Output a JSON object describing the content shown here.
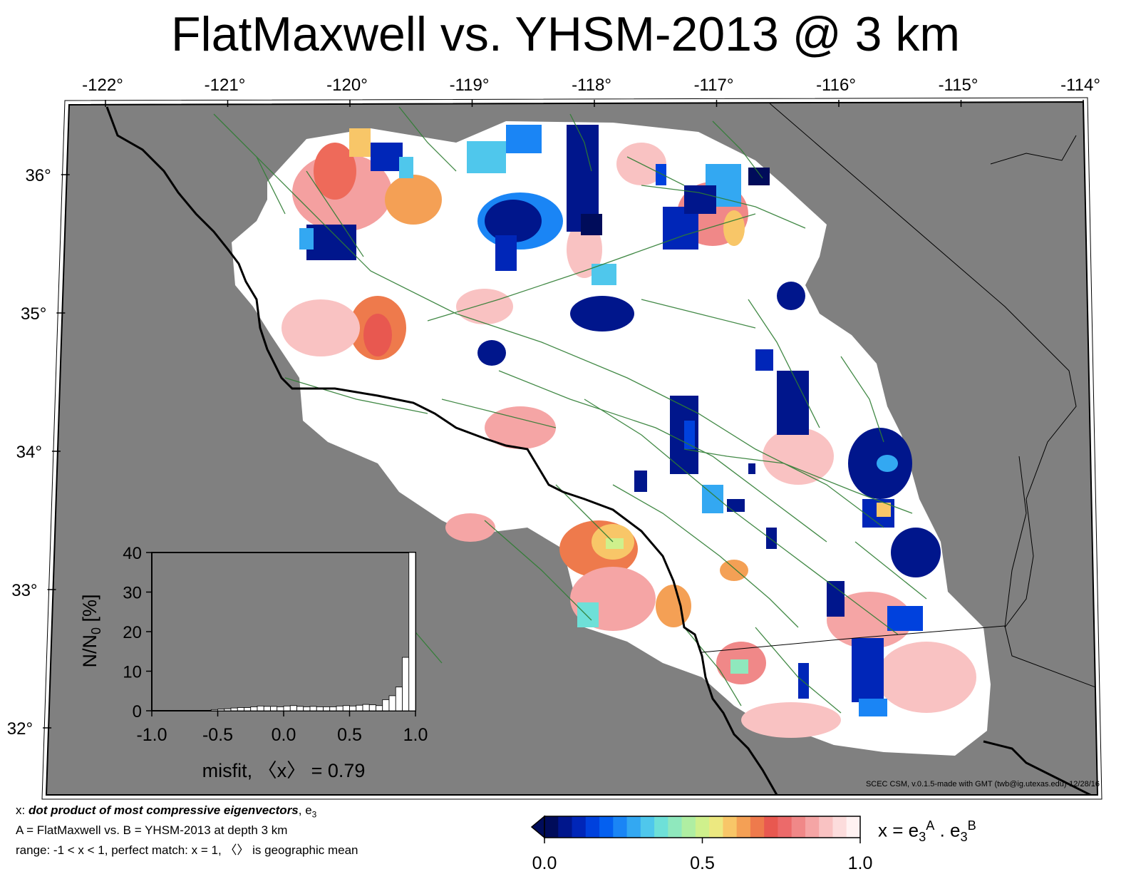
{
  "title": "FlatMaxwell vs. YHSM-2013 @ 3 km",
  "map": {
    "lon_ticks": [
      "-122°",
      "-121°",
      "-120°",
      "-119°",
      "-118°",
      "-117°",
      "-116°",
      "-115°",
      "-114°"
    ],
    "lat_ticks": [
      "36°",
      "35°",
      "34°",
      "33°",
      "32°"
    ],
    "ocean_color": "#808080",
    "fault_color": "#2e7d32",
    "coast_color": "#000000"
  },
  "histogram": {
    "ylabel_main": "N/N",
    "ylabel_sub": "0",
    "ylabel_unit": " [%]",
    "y_ticks": [
      "0",
      "10",
      "20",
      "30",
      "40"
    ],
    "x_ticks": [
      "-1.0",
      "-0.5",
      "0.0",
      "0.5",
      "1.0"
    ],
    "xlabel": "misfit, 〈x〉 = 0.79",
    "bins_x_start": -1.0,
    "bin_width": 0.05,
    "values": [
      0,
      0,
      0,
      0,
      0,
      0,
      0,
      0,
      0,
      0.3,
      0.4,
      0.5,
      0.7,
      0.8,
      0.8,
      1.0,
      1.2,
      1.1,
      1.1,
      1.0,
      1.2,
      1.3,
      1.1,
      1.0,
      1.1,
      1.0,
      1.0,
      1.0,
      1.2,
      1.3,
      1.2,
      1.4,
      1.6,
      1.5,
      1.3,
      2.8,
      3.8,
      6.0,
      13.5,
      40.0
    ]
  },
  "colorbar": {
    "ticks": [
      "0.0",
      "0.5",
      "1.0"
    ],
    "colors": [
      "#000c5a",
      "#00168c",
      "#0026b8",
      "#0041dd",
      "#0460f0",
      "#1a85f5",
      "#33a8f2",
      "#4fc7ec",
      "#6ee0d8",
      "#8fe8bd",
      "#afeea2",
      "#cff08c",
      "#ece880",
      "#f8c668",
      "#f4a055",
      "#ee7a4c",
      "#e85850",
      "#ec6a6a",
      "#f08888",
      "#f5a5a5",
      "#f9c2c2",
      "#fcdcdc",
      "#fff2f2"
    ]
  },
  "colorbar_label": {
    "text": "x = e",
    "sub1": "3",
    "sup1": "A",
    "mid": " . e",
    "sub2": "3",
    "sup2": "B"
  },
  "notes": {
    "line1_prefix": "x: ",
    "line1_bold": "dot product of most compressive eigenvectors",
    "line1_suffix": ", e",
    "line1_sub": "3",
    "line2": "A = FlatMaxwell vs.  B = YHSM-2013 at depth 3 km",
    "line3": "range: -1 < x < 1, perfect match: x = 1, 〈〉 is geographic mean"
  },
  "credit": "SCEC CSM, v.0.1.5-made with GMT (twb@ig.utexas.edu)-12/28/16"
}
